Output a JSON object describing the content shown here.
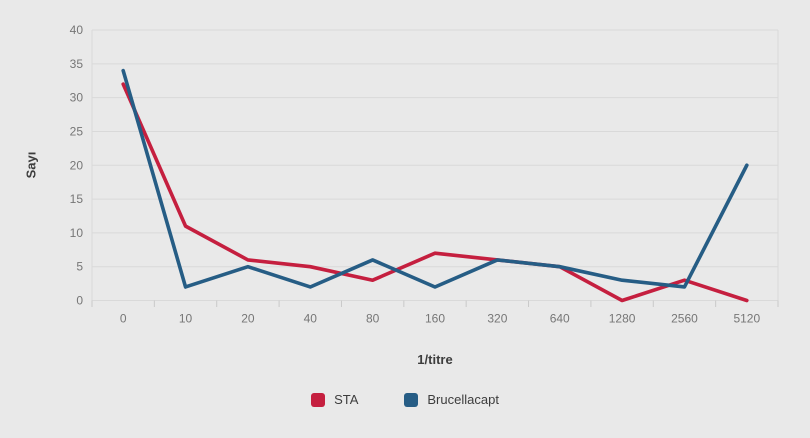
{
  "chart_data": {
    "type": "line",
    "title": "",
    "xlabel": "1/titre",
    "ylabel": "Sayı",
    "categories": [
      "0",
      "10",
      "20",
      "40",
      "80",
      "160",
      "320",
      "640",
      "1280",
      "2560",
      "5120"
    ],
    "series": [
      {
        "name": "STA",
        "color": "#c51f3f",
        "values": [
          32,
          11,
          6,
          5,
          3,
          7,
          6,
          5,
          0,
          3,
          0
        ]
      },
      {
        "name": "Brucellacapt",
        "color": "#265d85",
        "values": [
          34,
          2,
          5,
          2,
          6,
          2,
          6,
          5,
          3,
          2,
          20
        ]
      }
    ],
    "ylim": [
      0,
      40
    ],
    "ytick_step": 5,
    "grid": true,
    "legend_position": "bottom"
  },
  "colors": {
    "background": "#e9e9e9",
    "gridline": "#d9d9d9",
    "tick": "#c9c9c9",
    "axis_text": "#767676",
    "title_text": "#3d3d3d"
  }
}
